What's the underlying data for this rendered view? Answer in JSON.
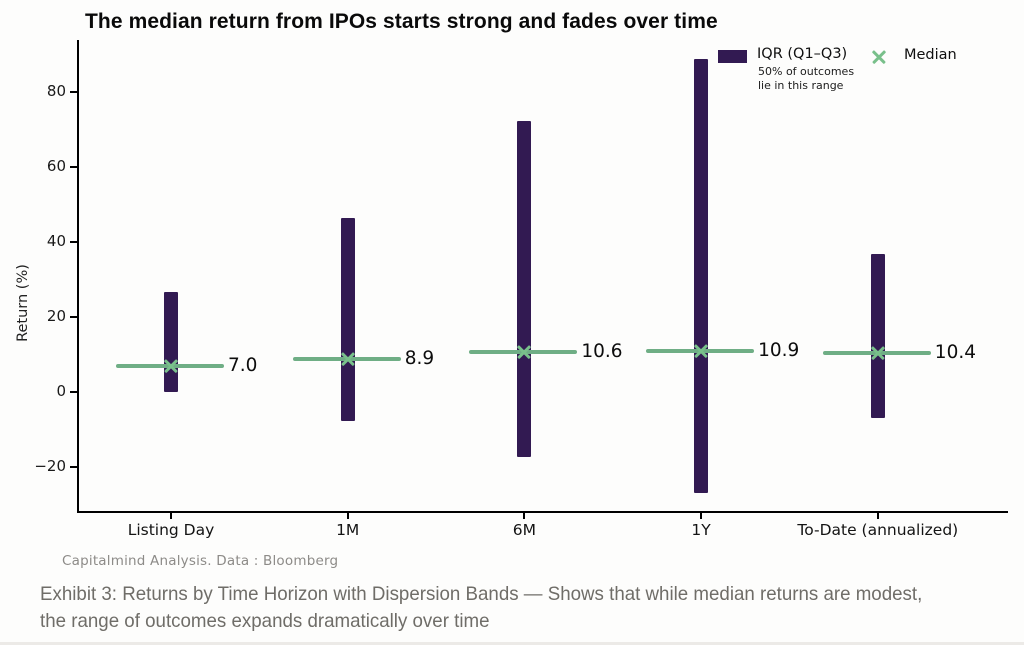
{
  "page": {
    "background": "#fdfdfc"
  },
  "title": "The median return from IPOs starts strong and fades over time",
  "legend": {
    "iqr_label": "IQR (Q1–Q3)",
    "iqr_sublabel": "50% of outcomes\nlie in this range",
    "median_label": "Median"
  },
  "chart_data": {
    "type": "bar",
    "subtype": "floating-iqr-range-bars-with-median-markers",
    "title": "The median return from IPOs starts strong and fades over time",
    "categories": [
      "Listing Day",
      "1M",
      "6M",
      "1Y",
      "To-Date (annualized)"
    ],
    "series": [
      {
        "name": "IQR (Q1–Q3)",
        "role": "iqr-range",
        "q1": [
          0.0,
          -7.7,
          -17.3,
          -26.8,
          -7.0
        ],
        "q3": [
          26.7,
          46.4,
          72.3,
          88.9,
          37.0
        ]
      },
      {
        "name": "Median",
        "role": "median",
        "values": [
          7.0,
          8.9,
          10.6,
          10.9,
          10.4
        ]
      }
    ],
    "median_labels": [
      "7.0",
      "8.9",
      "10.6",
      "10.9",
      "10.4"
    ],
    "xlabel": "",
    "ylabel": "Return (%)",
    "yticks": [
      {
        "value": -20,
        "label": "−20"
      },
      {
        "value": 0,
        "label": "0"
      },
      {
        "value": 20,
        "label": "20"
      },
      {
        "value": 40,
        "label": "40"
      },
      {
        "value": 60,
        "label": "60"
      },
      {
        "value": 80,
        "label": "80"
      }
    ],
    "ylim": [
      -32,
      94
    ],
    "grid": false,
    "legend_position": "top-right",
    "colors": {
      "iqr_bar": "#321a52",
      "median_line": "#6fae85",
      "median_marker": "#79c08b",
      "axis": "#000000",
      "tick_label": "#1a1a1a"
    }
  },
  "footer": {
    "source": "Capitalmind Analysis. Data : Bloomberg"
  },
  "caption": {
    "text": "Exhibit 3: Returns by Time Horizon with Dispersion Bands — Shows that while median returns are modest, the range of outcomes expands dramatically over time"
  }
}
